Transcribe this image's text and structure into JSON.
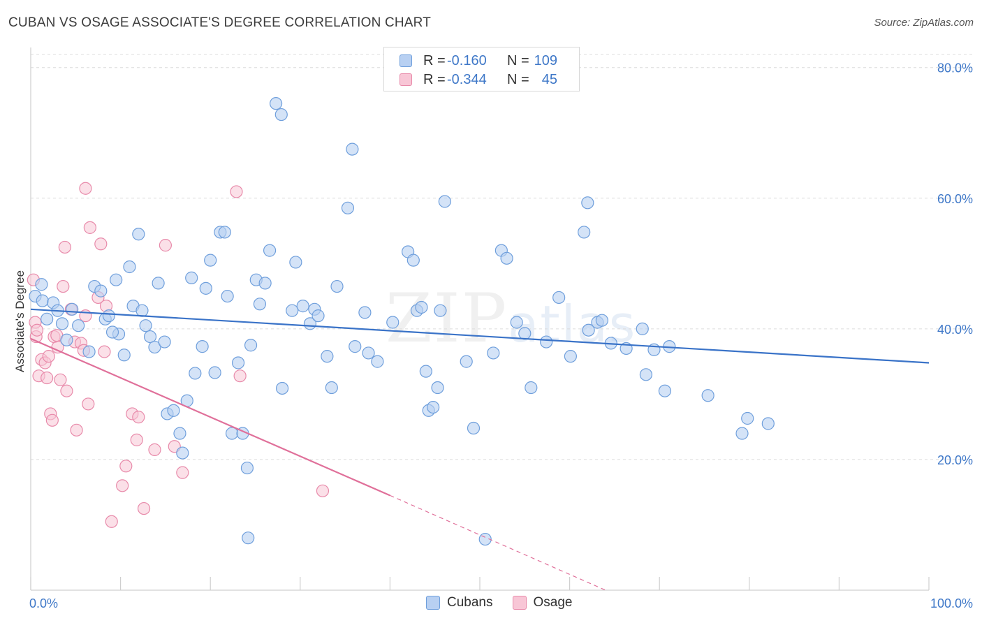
{
  "chart_title": "CUBAN VS OSAGE ASSOCIATE'S DEGREE CORRELATION CHART",
  "source": "Source: ZipAtlas.com",
  "watermark": {
    "zip": "ZIP",
    "atlas": "atlas"
  },
  "legend": {
    "rows": [
      {
        "r_label": "R =",
        "r_value": "-0.160",
        "n_label": "N =",
        "n_value": "109"
      },
      {
        "r_label": "R =",
        "r_value": "-0.344",
        "n_label": "N =",
        "n_value": "45"
      }
    ]
  },
  "bottom_legend": {
    "cubans": "Cubans",
    "osage": "Osage"
  },
  "colors": {
    "cubans_fill": "#b8d0f2",
    "cubans_stroke": "#6f9fdc",
    "cubans_line": "#3a73c8",
    "osage_fill": "#f8c6d6",
    "osage_stroke": "#e88aaa",
    "osage_line": "#e0709a",
    "grid": "#dcdcdc",
    "tick_text": "#3f78c8"
  },
  "chart_data": {
    "type": "scatter",
    "title": "CUBAN VS OSAGE ASSOCIATE'S DEGREE CORRELATION CHART",
    "xlabel": "",
    "ylabel": "Associate's Degree",
    "xlim": [
      0,
      100
    ],
    "ylim": [
      0,
      82
    ],
    "x_tick_labels": [
      "0.0%",
      "100.0%"
    ],
    "y_ticks": [
      20,
      40,
      60,
      80
    ],
    "y_tick_labels": [
      "20.0%",
      "40.0%",
      "60.0%",
      "80.0%"
    ],
    "grid": true,
    "series": [
      {
        "name": "Cubans",
        "r": -0.16,
        "n": 109,
        "trend": {
          "x0": 0,
          "y0": 43.0,
          "x1": 100,
          "y1": 34.8
        },
        "points": [
          [
            0.5,
            45.0
          ],
          [
            1.2,
            46.8
          ],
          [
            1.3,
            44.3
          ],
          [
            1.8,
            41.5
          ],
          [
            2.5,
            44.0
          ],
          [
            3.0,
            42.8
          ],
          [
            3.5,
            40.8
          ],
          [
            4.0,
            38.3
          ],
          [
            4.6,
            43.0
          ],
          [
            5.3,
            40.5
          ],
          [
            6.5,
            36.5
          ],
          [
            7.1,
            46.5
          ],
          [
            7.8,
            45.8
          ],
          [
            8.3,
            41.5
          ],
          [
            8.7,
            42.0
          ],
          [
            9.5,
            47.5
          ],
          [
            9.8,
            39.2
          ],
          [
            10.4,
            36.0
          ],
          [
            11.0,
            49.5
          ],
          [
            11.4,
            43.5
          ],
          [
            12.0,
            54.5
          ],
          [
            12.4,
            42.8
          ],
          [
            12.8,
            40.5
          ],
          [
            13.3,
            38.8
          ],
          [
            13.8,
            37.2
          ],
          [
            14.2,
            47.0
          ],
          [
            14.9,
            38.0
          ],
          [
            15.2,
            27.0
          ],
          [
            15.9,
            27.5
          ],
          [
            16.6,
            24.0
          ],
          [
            16.9,
            21.0
          ],
          [
            17.4,
            29.0
          ],
          [
            17.9,
            47.8
          ],
          [
            18.3,
            33.2
          ],
          [
            19.1,
            37.3
          ],
          [
            19.5,
            46.2
          ],
          [
            20.0,
            50.5
          ],
          [
            20.5,
            33.3
          ],
          [
            21.1,
            54.8
          ],
          [
            21.6,
            54.8
          ],
          [
            21.9,
            45.0
          ],
          [
            22.4,
            24.0
          ],
          [
            23.1,
            34.8
          ],
          [
            23.6,
            24.0
          ],
          [
            24.1,
            18.7
          ],
          [
            24.5,
            37.5
          ],
          [
            25.1,
            47.5
          ],
          [
            25.5,
            43.8
          ],
          [
            26.1,
            47.0
          ],
          [
            26.6,
            52.0
          ],
          [
            27.3,
            74.5
          ],
          [
            27.9,
            72.8
          ],
          [
            28.0,
            30.9
          ],
          [
            29.1,
            42.8
          ],
          [
            29.5,
            50.2
          ],
          [
            30.3,
            43.5
          ],
          [
            31.1,
            40.8
          ],
          [
            31.6,
            43.0
          ],
          [
            32.0,
            42.0
          ],
          [
            33.0,
            35.8
          ],
          [
            33.5,
            31.0
          ],
          [
            34.1,
            46.5
          ],
          [
            35.3,
            58.5
          ],
          [
            35.8,
            67.5
          ],
          [
            36.1,
            37.3
          ],
          [
            37.2,
            42.5
          ],
          [
            37.6,
            36.3
          ],
          [
            40.3,
            41.0
          ],
          [
            42.0,
            51.8
          ],
          [
            42.6,
            50.5
          ],
          [
            43.0,
            42.8
          ],
          [
            43.5,
            43.3
          ],
          [
            44.0,
            33.5
          ],
          [
            44.3,
            27.5
          ],
          [
            44.8,
            28.0
          ],
          [
            45.3,
            31.0
          ],
          [
            46.1,
            59.5
          ],
          [
            48.5,
            35.0
          ],
          [
            49.3,
            24.8
          ],
          [
            50.6,
            7.8
          ],
          [
            51.5,
            36.3
          ],
          [
            52.4,
            52.0
          ],
          [
            53.0,
            50.8
          ],
          [
            54.1,
            41.0
          ],
          [
            55.0,
            39.3
          ],
          [
            55.7,
            31.0
          ],
          [
            57.4,
            38.0
          ],
          [
            58.8,
            44.8
          ],
          [
            60.1,
            35.8
          ],
          [
            61.6,
            54.8
          ],
          [
            62.0,
            59.3
          ],
          [
            62.1,
            39.8
          ],
          [
            63.1,
            41.0
          ],
          [
            63.6,
            41.3
          ],
          [
            64.6,
            37.8
          ],
          [
            66.3,
            37.0
          ],
          [
            68.1,
            40.0
          ],
          [
            68.5,
            33.0
          ],
          [
            69.4,
            36.8
          ],
          [
            70.6,
            30.5
          ],
          [
            71.1,
            37.3
          ],
          [
            75.4,
            29.8
          ],
          [
            79.2,
            24.0
          ],
          [
            79.8,
            26.3
          ],
          [
            82.1,
            25.5
          ],
          [
            24.2,
            8.0
          ],
          [
            45.6,
            42.8
          ],
          [
            38.6,
            35.0
          ],
          [
            9.1,
            39.5
          ]
        ]
      },
      {
        "name": "Osage",
        "r": -0.344,
        "n": 45,
        "trend": {
          "x0": 0,
          "y0": 38.5,
          "x1": 40,
          "y1": 14.5
        },
        "trend_dashed": {
          "x0": 40,
          "y0": 14.5,
          "x1": 64,
          "y1": 0
        },
        "points": [
          [
            0.3,
            47.5
          ],
          [
            0.5,
            41.0
          ],
          [
            0.6,
            38.8
          ],
          [
            0.7,
            39.8
          ],
          [
            0.9,
            32.8
          ],
          [
            1.2,
            35.3
          ],
          [
            1.6,
            34.8
          ],
          [
            1.8,
            32.5
          ],
          [
            2.0,
            35.8
          ],
          [
            2.2,
            27.0
          ],
          [
            2.4,
            26.0
          ],
          [
            2.6,
            38.8
          ],
          [
            3.0,
            37.2
          ],
          [
            3.3,
            32.2
          ],
          [
            3.6,
            46.5
          ],
          [
            3.8,
            52.5
          ],
          [
            4.0,
            30.5
          ],
          [
            4.5,
            43.0
          ],
          [
            4.9,
            38.0
          ],
          [
            5.1,
            24.5
          ],
          [
            5.6,
            37.8
          ],
          [
            5.9,
            36.7
          ],
          [
            6.1,
            42.0
          ],
          [
            6.4,
            28.5
          ],
          [
            6.6,
            55.5
          ],
          [
            6.1,
            61.5
          ],
          [
            7.5,
            44.8
          ],
          [
            7.8,
            53.0
          ],
          [
            8.2,
            36.5
          ],
          [
            8.4,
            43.5
          ],
          [
            9.0,
            10.5
          ],
          [
            10.2,
            16.0
          ],
          [
            10.6,
            19.0
          ],
          [
            11.3,
            27.0
          ],
          [
            11.8,
            23.0
          ],
          [
            12.0,
            26.5
          ],
          [
            12.6,
            12.5
          ],
          [
            13.8,
            21.5
          ],
          [
            15.0,
            52.8
          ],
          [
            16.0,
            22.0
          ],
          [
            16.9,
            18.0
          ],
          [
            22.9,
            61.0
          ],
          [
            23.3,
            32.8
          ],
          [
            32.5,
            15.2
          ],
          [
            2.9,
            39.0
          ]
        ]
      }
    ]
  }
}
